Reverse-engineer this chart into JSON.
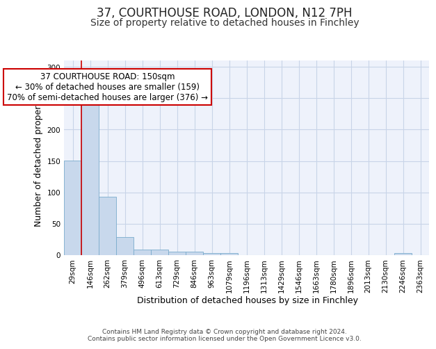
{
  "title": "37, COURTHOUSE ROAD, LONDON, N12 7PH",
  "subtitle": "Size of property relative to detached houses in Finchley",
  "xlabel": "Distribution of detached houses by size in Finchley",
  "ylabel": "Number of detached properties",
  "bar_labels": [
    "29sqm",
    "146sqm",
    "262sqm",
    "379sqm",
    "496sqm",
    "613sqm",
    "729sqm",
    "846sqm",
    "963sqm",
    "1079sqm",
    "1196sqm",
    "1313sqm",
    "1429sqm",
    "1546sqm",
    "1663sqm",
    "1780sqm",
    "1896sqm",
    "2013sqm",
    "2130sqm",
    "2246sqm",
    "2363sqm"
  ],
  "bar_values": [
    151,
    242,
    93,
    29,
    9,
    9,
    6,
    5,
    3,
    3,
    0,
    0,
    0,
    0,
    0,
    0,
    0,
    0,
    0,
    3,
    0
  ],
  "bar_color": "#c8d8ec",
  "bar_edge_color": "#7aabcc",
  "bg_color": "#eef2fb",
  "grid_color": "#c8d4e8",
  "red_line_color": "#cc0000",
  "annotation_text": "37 COURTHOUSE ROAD: 150sqm\n← 30% of detached houses are smaller (159)\n70% of semi-detached houses are larger (376) →",
  "annotation_box_color": "#ffffff",
  "annotation_border_color": "#cc0000",
  "ylim": [
    0,
    310
  ],
  "yticks": [
    0,
    50,
    100,
    150,
    200,
    250,
    300
  ],
  "footer_text": "Contains HM Land Registry data © Crown copyright and database right 2024.\nContains public sector information licensed under the Open Government Licence v3.0.",
  "title_fontsize": 12,
  "subtitle_fontsize": 10,
  "axis_label_fontsize": 9,
  "tick_fontsize": 7.5,
  "annotation_fontsize": 8.5
}
